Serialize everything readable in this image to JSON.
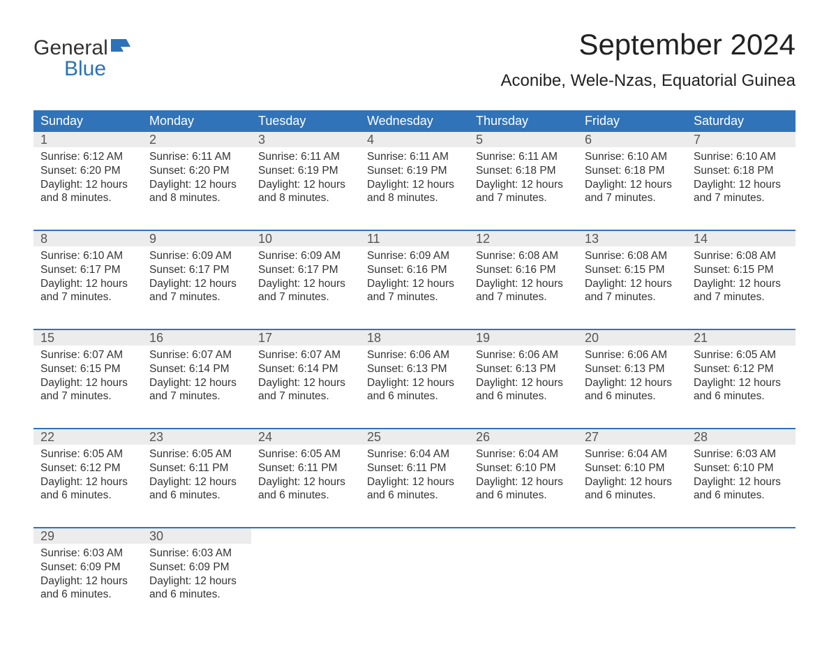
{
  "logo": {
    "word1": "General",
    "word2": "Blue",
    "flag_color": "#2b72b9"
  },
  "title": "September 2024",
  "location": "Aconibe, Wele-Nzas, Equatorial Guinea",
  "styling": {
    "header_bg": "#3073b9",
    "header_text": "#ffffff",
    "daynum_bg": "#ececec",
    "daynum_text": "#555555",
    "week_border": "#3073b9",
    "body_text": "#333333",
    "page_bg": "#ffffff",
    "month_fontsize": 42,
    "location_fontsize": 24,
    "dayheader_fontsize": 18,
    "daynum_fontsize": 18,
    "body_fontsize": 15.5
  },
  "day_headers": [
    "Sunday",
    "Monday",
    "Tuesday",
    "Wednesday",
    "Thursday",
    "Friday",
    "Saturday"
  ],
  "weeks": [
    [
      {
        "n": "1",
        "sunrise": "Sunrise: 6:12 AM",
        "sunset": "Sunset: 6:20 PM",
        "dl1": "Daylight: 12 hours",
        "dl2": "and 8 minutes."
      },
      {
        "n": "2",
        "sunrise": "Sunrise: 6:11 AM",
        "sunset": "Sunset: 6:20 PM",
        "dl1": "Daylight: 12 hours",
        "dl2": "and 8 minutes."
      },
      {
        "n": "3",
        "sunrise": "Sunrise: 6:11 AM",
        "sunset": "Sunset: 6:19 PM",
        "dl1": "Daylight: 12 hours",
        "dl2": "and 8 minutes."
      },
      {
        "n": "4",
        "sunrise": "Sunrise: 6:11 AM",
        "sunset": "Sunset: 6:19 PM",
        "dl1": "Daylight: 12 hours",
        "dl2": "and 8 minutes."
      },
      {
        "n": "5",
        "sunrise": "Sunrise: 6:11 AM",
        "sunset": "Sunset: 6:18 PM",
        "dl1": "Daylight: 12 hours",
        "dl2": "and 7 minutes."
      },
      {
        "n": "6",
        "sunrise": "Sunrise: 6:10 AM",
        "sunset": "Sunset: 6:18 PM",
        "dl1": "Daylight: 12 hours",
        "dl2": "and 7 minutes."
      },
      {
        "n": "7",
        "sunrise": "Sunrise: 6:10 AM",
        "sunset": "Sunset: 6:18 PM",
        "dl1": "Daylight: 12 hours",
        "dl2": "and 7 minutes."
      }
    ],
    [
      {
        "n": "8",
        "sunrise": "Sunrise: 6:10 AM",
        "sunset": "Sunset: 6:17 PM",
        "dl1": "Daylight: 12 hours",
        "dl2": "and 7 minutes."
      },
      {
        "n": "9",
        "sunrise": "Sunrise: 6:09 AM",
        "sunset": "Sunset: 6:17 PM",
        "dl1": "Daylight: 12 hours",
        "dl2": "and 7 minutes."
      },
      {
        "n": "10",
        "sunrise": "Sunrise: 6:09 AM",
        "sunset": "Sunset: 6:17 PM",
        "dl1": "Daylight: 12 hours",
        "dl2": "and 7 minutes."
      },
      {
        "n": "11",
        "sunrise": "Sunrise: 6:09 AM",
        "sunset": "Sunset: 6:16 PM",
        "dl1": "Daylight: 12 hours",
        "dl2": "and 7 minutes."
      },
      {
        "n": "12",
        "sunrise": "Sunrise: 6:08 AM",
        "sunset": "Sunset: 6:16 PM",
        "dl1": "Daylight: 12 hours",
        "dl2": "and 7 minutes."
      },
      {
        "n": "13",
        "sunrise": "Sunrise: 6:08 AM",
        "sunset": "Sunset: 6:15 PM",
        "dl1": "Daylight: 12 hours",
        "dl2": "and 7 minutes."
      },
      {
        "n": "14",
        "sunrise": "Sunrise: 6:08 AM",
        "sunset": "Sunset: 6:15 PM",
        "dl1": "Daylight: 12 hours",
        "dl2": "and 7 minutes."
      }
    ],
    [
      {
        "n": "15",
        "sunrise": "Sunrise: 6:07 AM",
        "sunset": "Sunset: 6:15 PM",
        "dl1": "Daylight: 12 hours",
        "dl2": "and 7 minutes."
      },
      {
        "n": "16",
        "sunrise": "Sunrise: 6:07 AM",
        "sunset": "Sunset: 6:14 PM",
        "dl1": "Daylight: 12 hours",
        "dl2": "and 7 minutes."
      },
      {
        "n": "17",
        "sunrise": "Sunrise: 6:07 AM",
        "sunset": "Sunset: 6:14 PM",
        "dl1": "Daylight: 12 hours",
        "dl2": "and 7 minutes."
      },
      {
        "n": "18",
        "sunrise": "Sunrise: 6:06 AM",
        "sunset": "Sunset: 6:13 PM",
        "dl1": "Daylight: 12 hours",
        "dl2": "and 6 minutes."
      },
      {
        "n": "19",
        "sunrise": "Sunrise: 6:06 AM",
        "sunset": "Sunset: 6:13 PM",
        "dl1": "Daylight: 12 hours",
        "dl2": "and 6 minutes."
      },
      {
        "n": "20",
        "sunrise": "Sunrise: 6:06 AM",
        "sunset": "Sunset: 6:13 PM",
        "dl1": "Daylight: 12 hours",
        "dl2": "and 6 minutes."
      },
      {
        "n": "21",
        "sunrise": "Sunrise: 6:05 AM",
        "sunset": "Sunset: 6:12 PM",
        "dl1": "Daylight: 12 hours",
        "dl2": "and 6 minutes."
      }
    ],
    [
      {
        "n": "22",
        "sunrise": "Sunrise: 6:05 AM",
        "sunset": "Sunset: 6:12 PM",
        "dl1": "Daylight: 12 hours",
        "dl2": "and 6 minutes."
      },
      {
        "n": "23",
        "sunrise": "Sunrise: 6:05 AM",
        "sunset": "Sunset: 6:11 PM",
        "dl1": "Daylight: 12 hours",
        "dl2": "and 6 minutes."
      },
      {
        "n": "24",
        "sunrise": "Sunrise: 6:05 AM",
        "sunset": "Sunset: 6:11 PM",
        "dl1": "Daylight: 12 hours",
        "dl2": "and 6 minutes."
      },
      {
        "n": "25",
        "sunrise": "Sunrise: 6:04 AM",
        "sunset": "Sunset: 6:11 PM",
        "dl1": "Daylight: 12 hours",
        "dl2": "and 6 minutes."
      },
      {
        "n": "26",
        "sunrise": "Sunrise: 6:04 AM",
        "sunset": "Sunset: 6:10 PM",
        "dl1": "Daylight: 12 hours",
        "dl2": "and 6 minutes."
      },
      {
        "n": "27",
        "sunrise": "Sunrise: 6:04 AM",
        "sunset": "Sunset: 6:10 PM",
        "dl1": "Daylight: 12 hours",
        "dl2": "and 6 minutes."
      },
      {
        "n": "28",
        "sunrise": "Sunrise: 6:03 AM",
        "sunset": "Sunset: 6:10 PM",
        "dl1": "Daylight: 12 hours",
        "dl2": "and 6 minutes."
      }
    ],
    [
      {
        "n": "29",
        "sunrise": "Sunrise: 6:03 AM",
        "sunset": "Sunset: 6:09 PM",
        "dl1": "Daylight: 12 hours",
        "dl2": "and 6 minutes."
      },
      {
        "n": "30",
        "sunrise": "Sunrise: 6:03 AM",
        "sunset": "Sunset: 6:09 PM",
        "dl1": "Daylight: 12 hours",
        "dl2": "and 6 minutes."
      },
      {
        "empty": true,
        "n": " "
      },
      {
        "empty": true,
        "n": " "
      },
      {
        "empty": true,
        "n": " "
      },
      {
        "empty": true,
        "n": " "
      },
      {
        "empty": true,
        "n": " "
      }
    ]
  ]
}
